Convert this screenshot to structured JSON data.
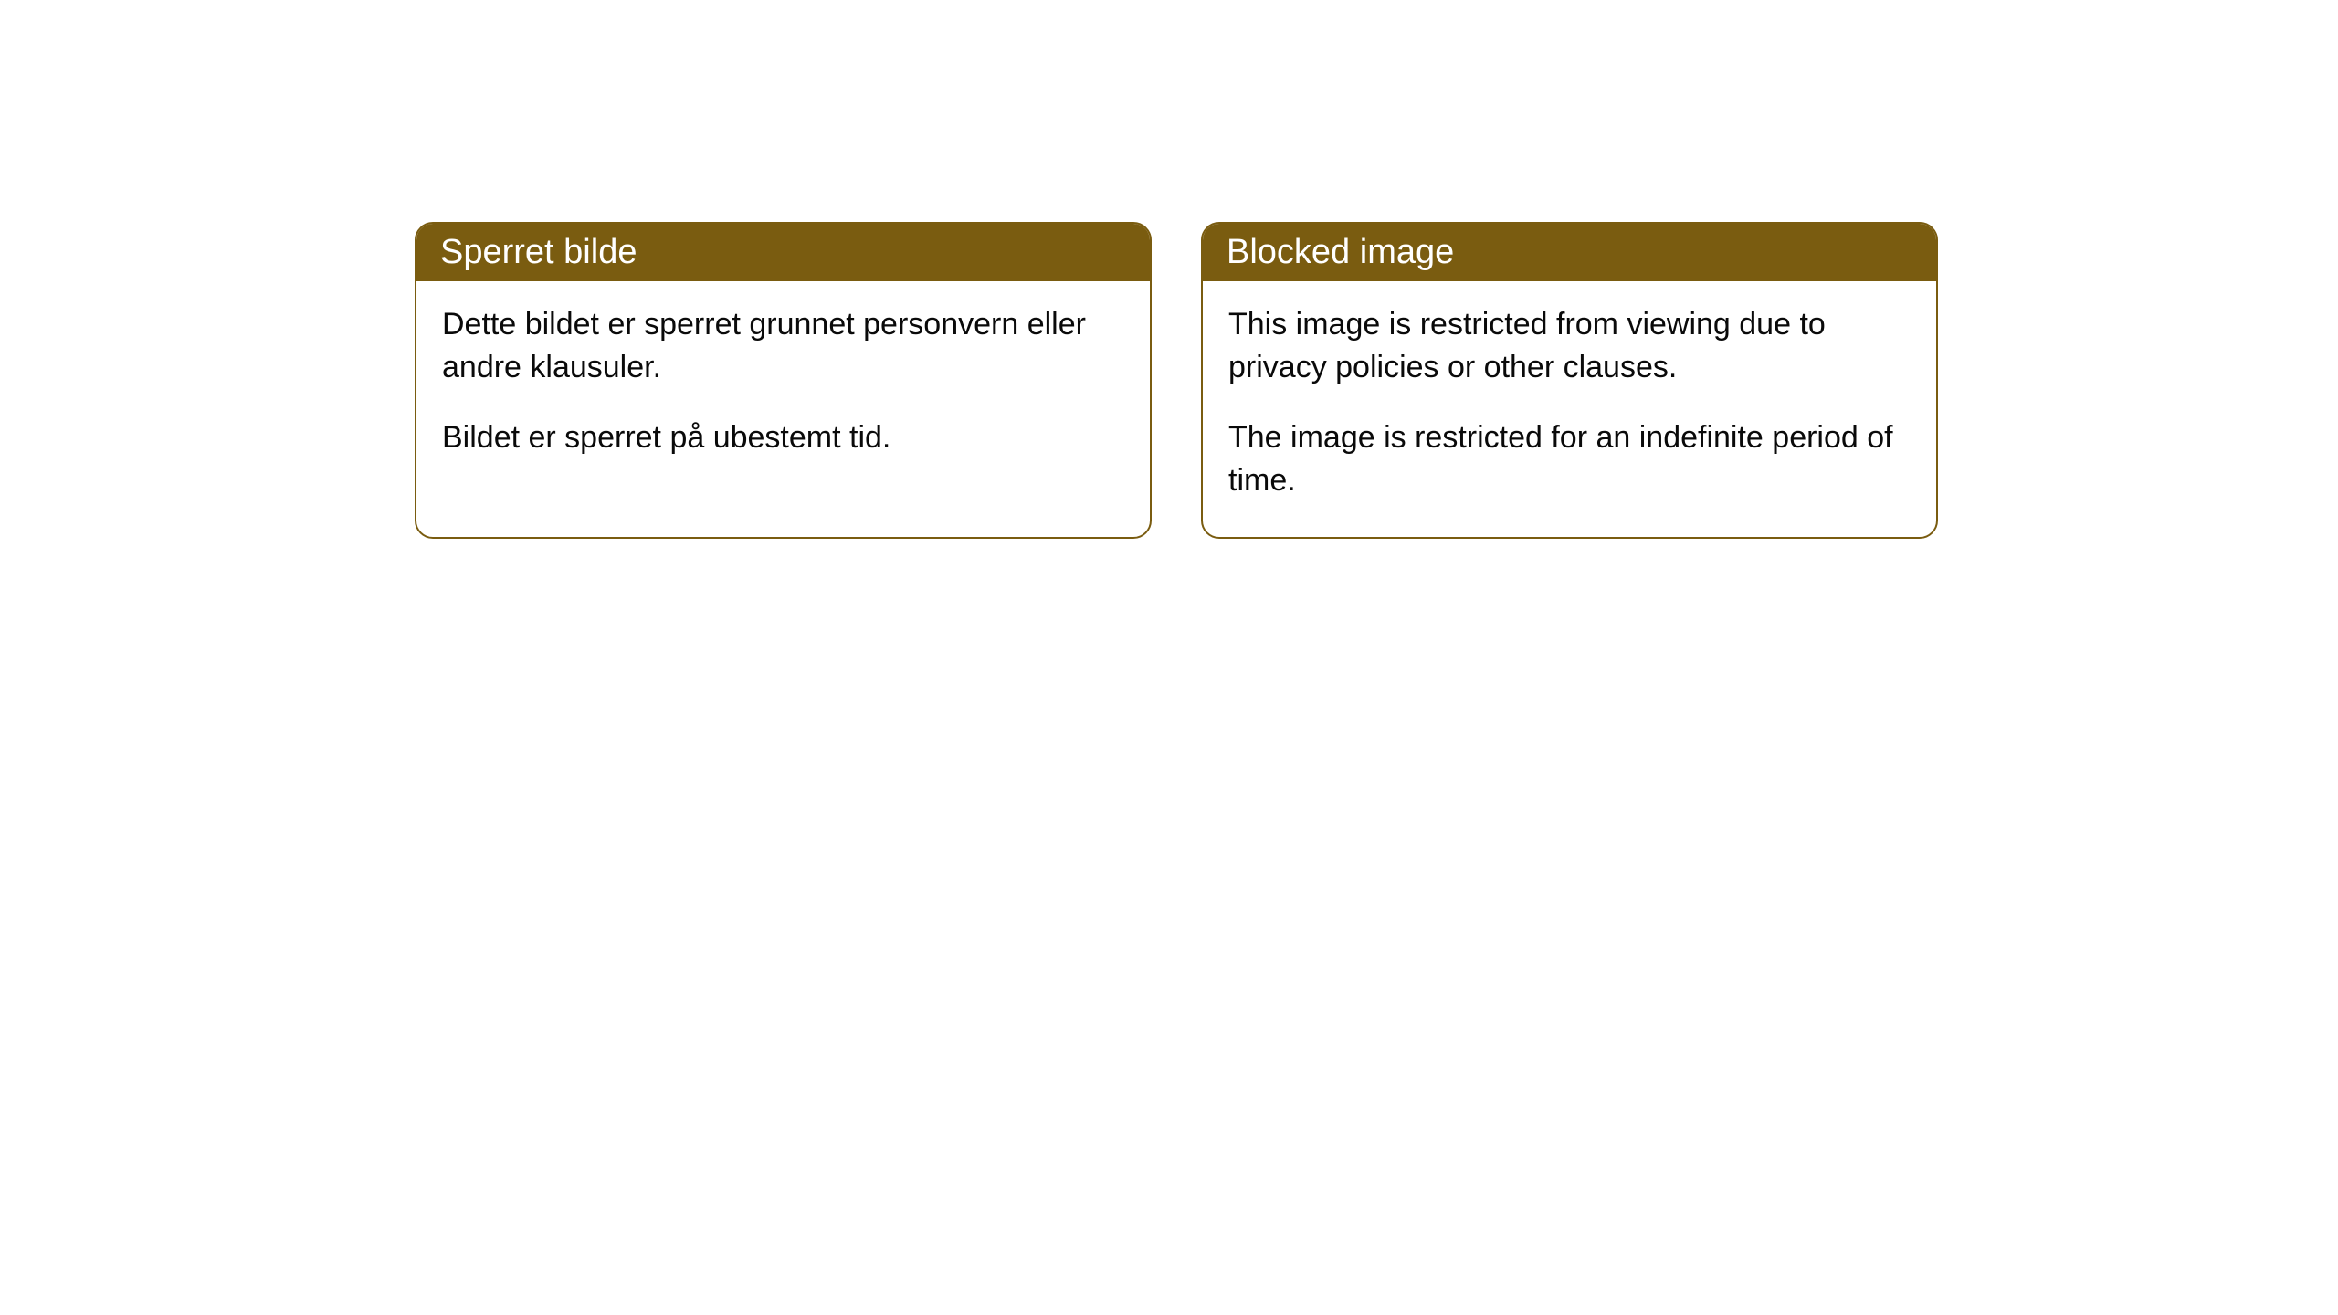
{
  "cards": [
    {
      "title": "Sperret bilde",
      "paragraph1": "Dette bildet er sperret grunnet personvern eller andre klausuler.",
      "paragraph2": "Bildet er sperret på ubestemt tid."
    },
    {
      "title": "Blocked image",
      "paragraph1": "This image is restricted from viewing due to privacy policies or other clauses.",
      "paragraph2": "The image is restricted for an indefinite period of time."
    }
  ],
  "style": {
    "header_bg_color": "#7a5c10",
    "header_text_color": "#ffffff",
    "border_color": "#7a5c10",
    "body_bg_color": "#ffffff",
    "body_text_color": "#0a0a0a",
    "border_radius": 20,
    "title_fontsize": 38,
    "body_fontsize": 34
  }
}
